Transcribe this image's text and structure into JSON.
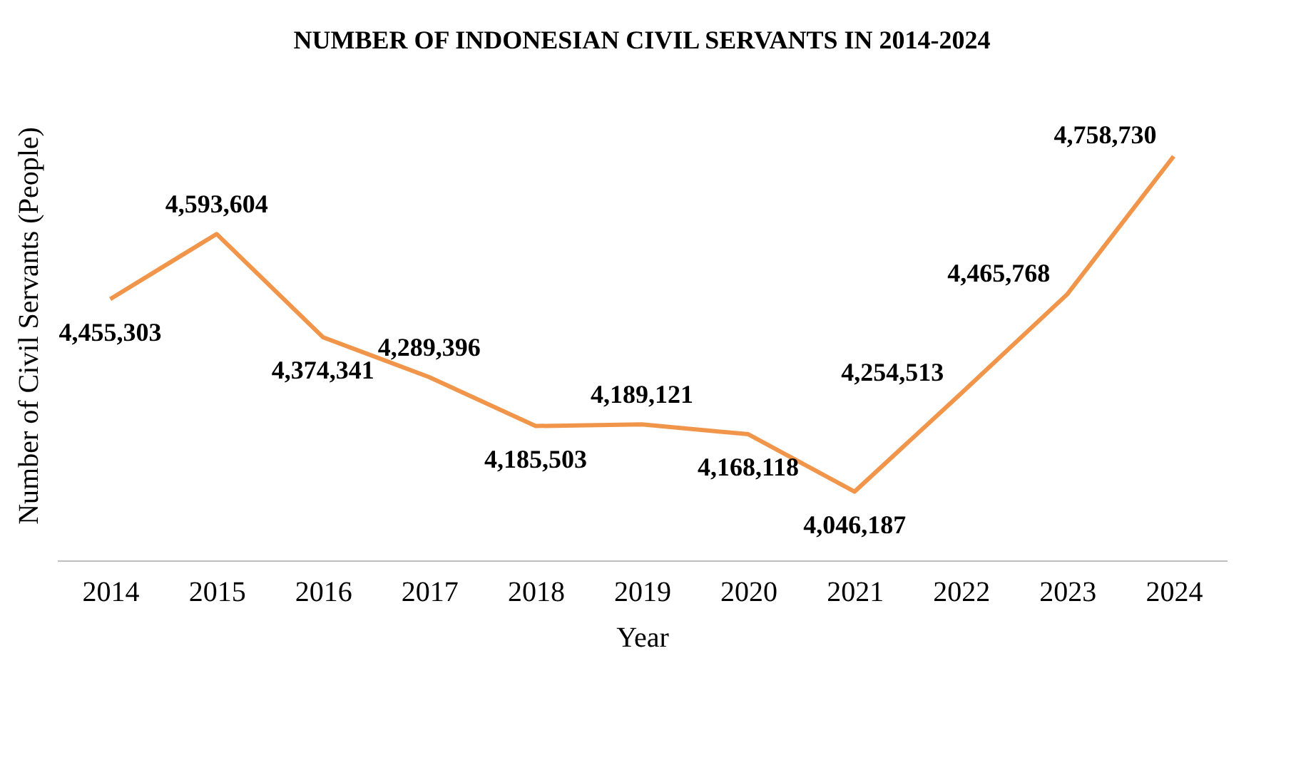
{
  "chart_data": {
    "type": "line",
    "title": "NUMBER OF INDONESIAN CIVIL SERVANTS IN 2014-2024",
    "xlabel": "Year",
    "ylabel": "Number of Civil Servants (People)",
    "categories": [
      "2014",
      "2015",
      "2016",
      "2017",
      "2018",
      "2019",
      "2020",
      "2021",
      "2022",
      "2023",
      "2024"
    ],
    "series": [
      {
        "color": "#f0954a",
        "values": [
          4455303,
          4593604,
          4374341,
          4289396,
          4185503,
          4189121,
          4168118,
          4046187,
          4254513,
          4465768,
          4758730
        ],
        "value_labels": [
          "4,455,303",
          "4,593,604",
          "4,374,341",
          "4,289,396",
          "4,185,503",
          "4,189,121",
          "4,168,118",
          "4,046,187",
          "4,254,513",
          "4,465,768",
          "4,758,730"
        ]
      }
    ],
    "relative": false,
    "grid": false,
    "legend": false,
    "marker": "none",
    "line_style": "solid"
  }
}
